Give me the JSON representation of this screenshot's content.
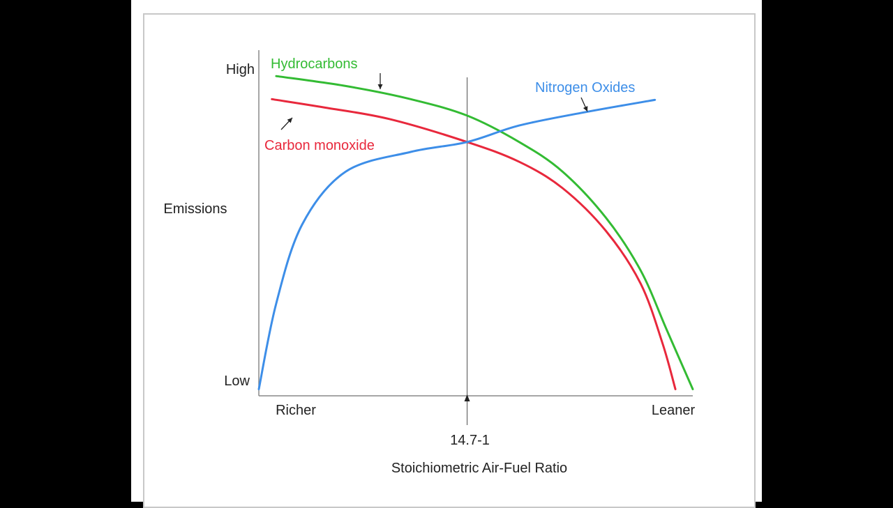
{
  "chart_data": {
    "type": "line",
    "title": "",
    "xlabel": "Stoichiometric Air-Fuel Ratio",
    "ylabel": "Emissions",
    "x_tick_labels": {
      "left": "Richer",
      "right": "Leaner"
    },
    "y_tick_labels": {
      "top": "High",
      "bottom": "Low"
    },
    "xlim": [
      0,
      100
    ],
    "ylim": [
      0,
      100
    ],
    "reference_line": {
      "x": 48,
      "label": "14.7-1"
    },
    "grid": false,
    "series": [
      {
        "name": "Hydrocarbons",
        "color": "#33bb33",
        "x": [
          4,
          20,
          35,
          48,
          60,
          70,
          80,
          88,
          94,
          100
        ],
        "y": [
          97,
          94,
          90,
          85,
          77,
          68,
          54,
          38,
          20,
          2
        ]
      },
      {
        "name": "Carbon monoxide",
        "color": "#e8283c",
        "x": [
          3,
          15,
          30,
          48,
          60,
          70,
          80,
          88,
          93,
          96
        ],
        "y": [
          90,
          87.5,
          84,
          77,
          71,
          63,
          50,
          34,
          16,
          2
        ]
      },
      {
        "name": "Nitrogen Oxides",
        "color": "#3d8ee8",
        "x": [
          0,
          4,
          10,
          20,
          35,
          48,
          60,
          75,
          90,
          90.5
        ],
        "y": [
          2,
          28,
          52,
          68,
          74,
          77,
          82,
          86,
          89.5,
          89.6
        ]
      }
    ]
  }
}
